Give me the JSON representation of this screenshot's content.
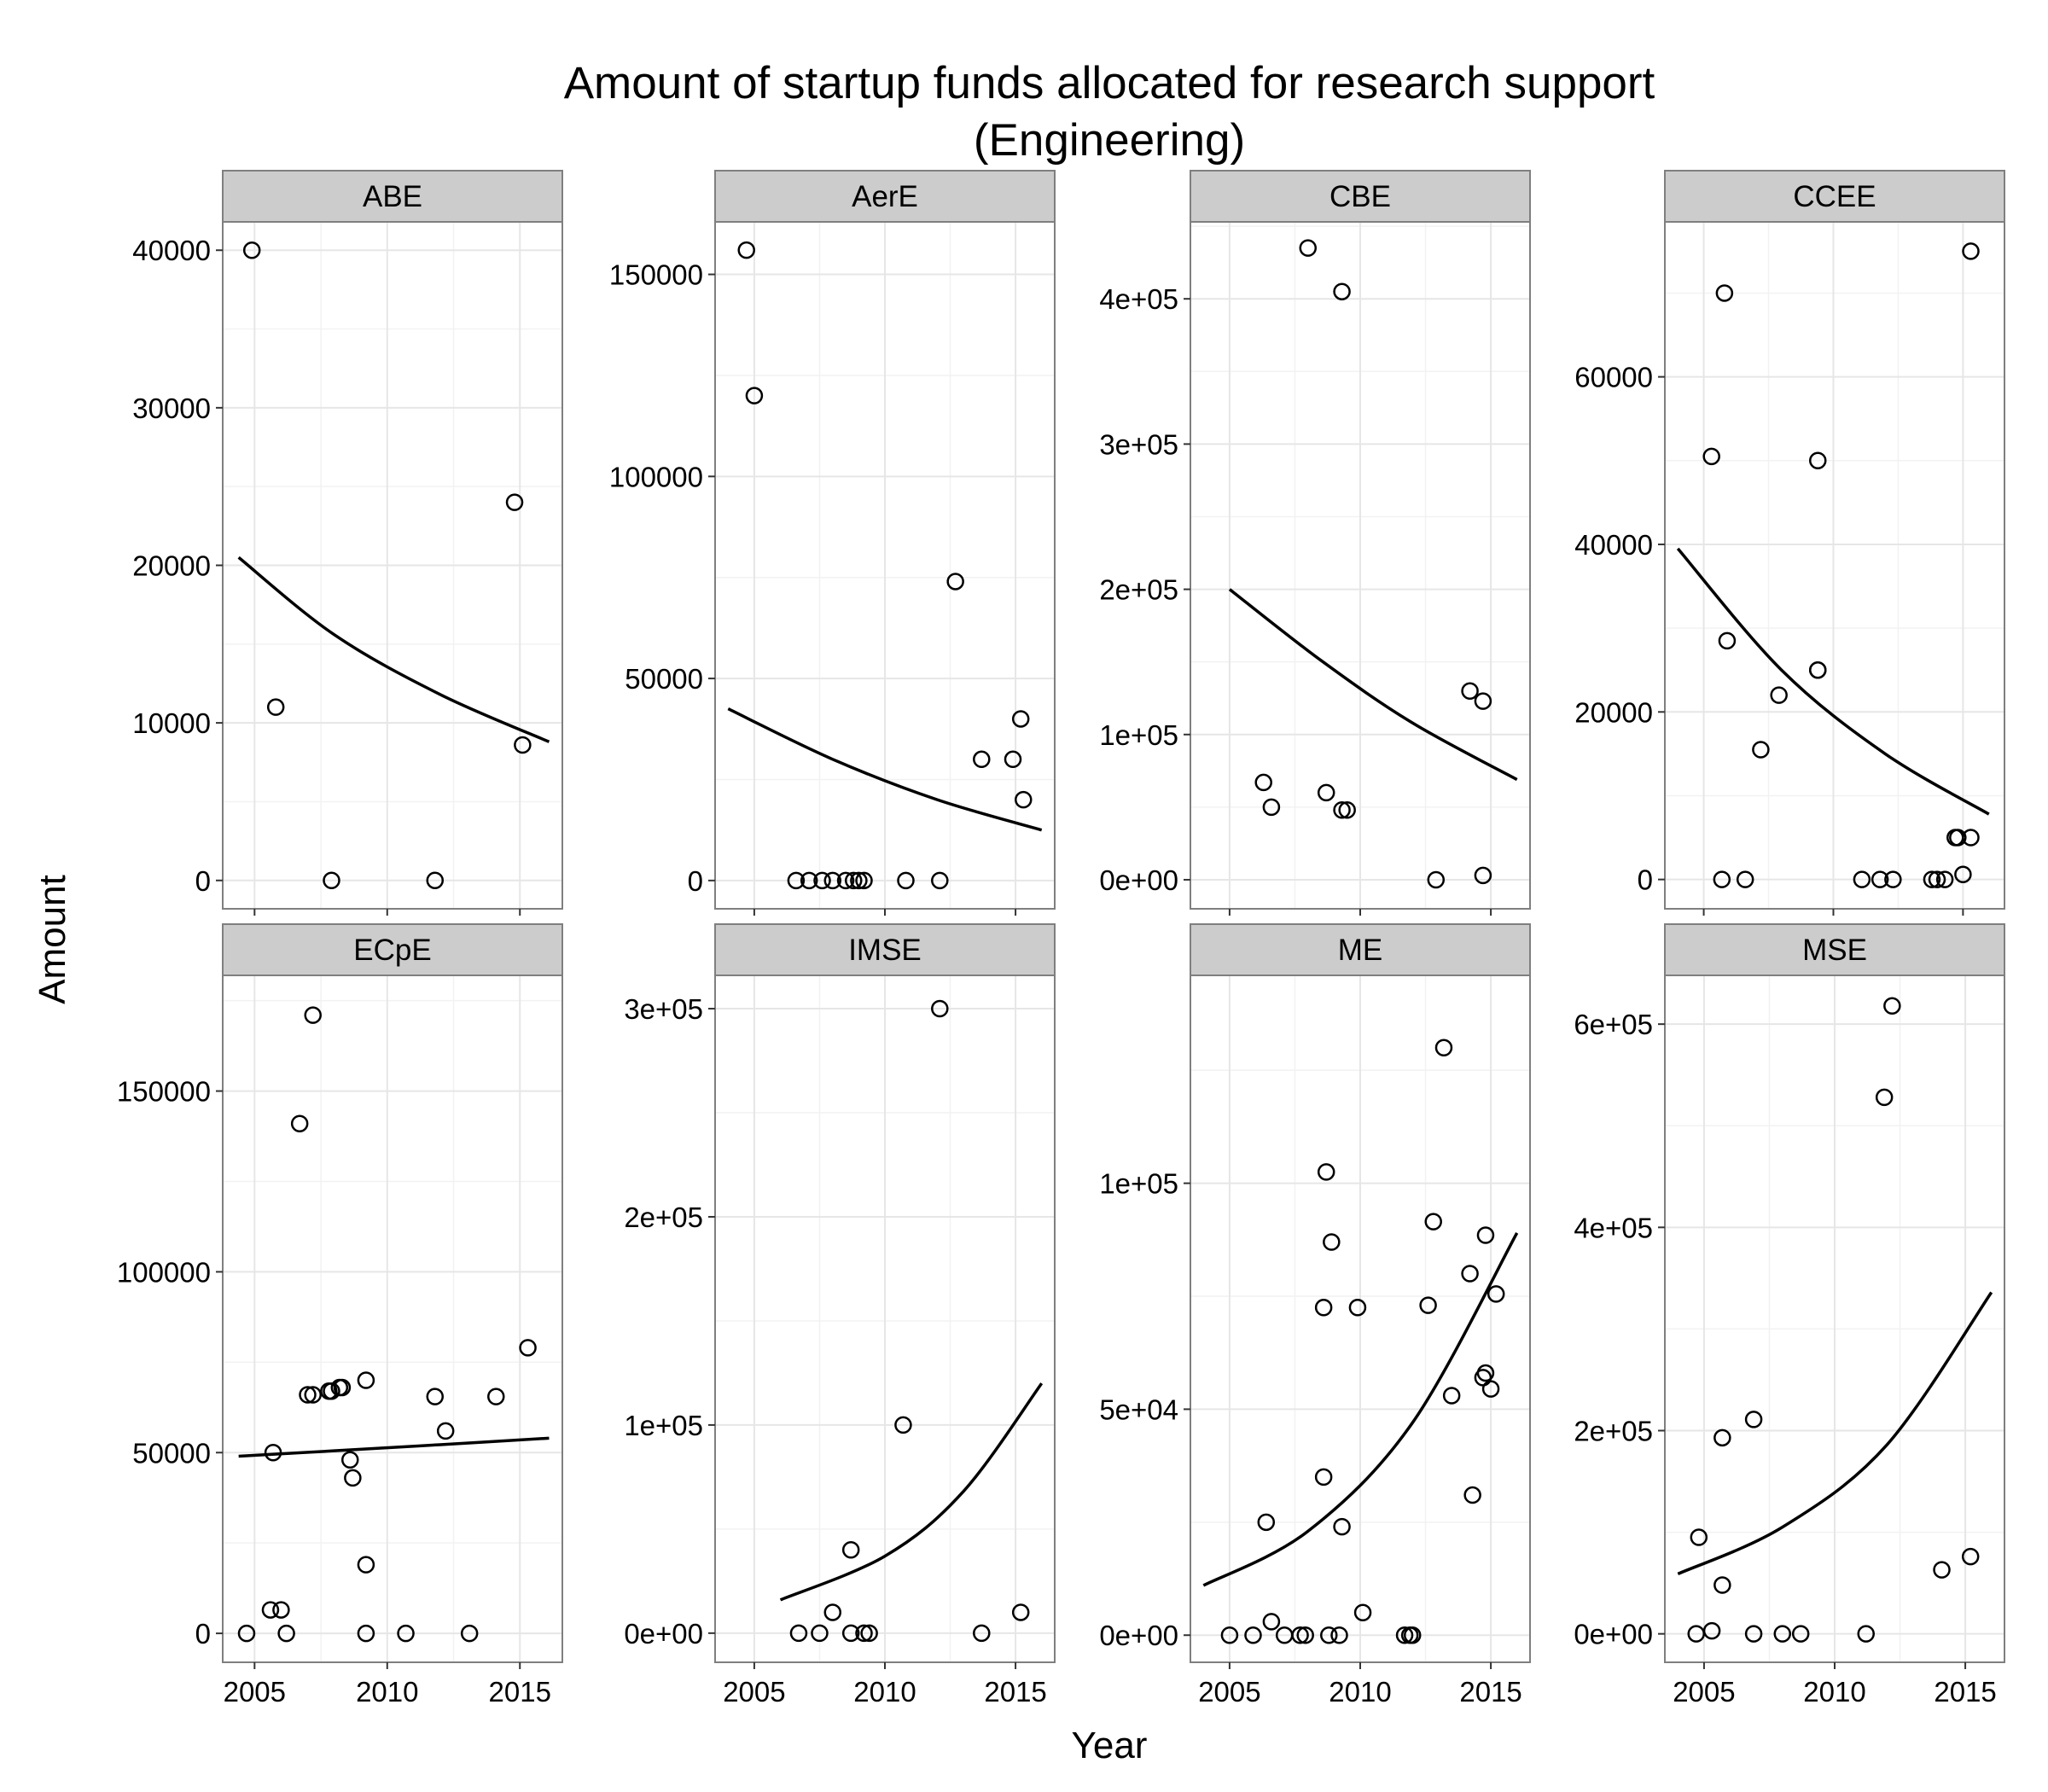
{
  "title": [
    "Amount of startup funds allocated for research support",
    "(Engineering)"
  ],
  "xlabel": "Year",
  "ylabel": "Amount",
  "colors": {
    "strip_fill": "#cccccc",
    "panel_border": "#7f7f7f",
    "grid_major": "#e6e6e6",
    "grid_minor": "#f2f2f2",
    "point_stroke": "#000000",
    "trend_line": "#000000"
  },
  "chart_data": [
    {
      "type": "scatter",
      "panel": "ABE",
      "xlim": [
        2003.8,
        2016.6
      ],
      "ylim": [
        -1800,
        41800
      ],
      "x_ticks": [
        2005,
        2010,
        2015
      ],
      "x_tick_labels": [
        "2005",
        "2010",
        "2015"
      ],
      "y_ticks": [
        0,
        10000,
        20000,
        30000,
        40000
      ],
      "y_tick_labels": [
        "0",
        "10000",
        "20000",
        "30000",
        "40000"
      ],
      "points": [
        [
          2004.9,
          40000
        ],
        [
          2005.8,
          11000
        ],
        [
          2007.9,
          0
        ],
        [
          2011.8,
          0
        ],
        [
          2014.8,
          24000
        ],
        [
          2015.1,
          8600
        ]
      ],
      "trend": [
        [
          2004.4,
          20500
        ],
        [
          2008.0,
          15600
        ],
        [
          2012.0,
          11800
        ],
        [
          2016.1,
          8800
        ]
      ]
    },
    {
      "type": "scatter",
      "panel": "AerE",
      "xlim": [
        2003.5,
        2016.5
      ],
      "ylim": [
        -7000,
        163000
      ],
      "x_ticks": [
        2005,
        2010,
        2015
      ],
      "x_tick_labels": [
        "2005",
        "2010",
        "2015"
      ],
      "y_ticks": [
        0,
        50000,
        100000,
        150000
      ],
      "y_tick_labels": [
        "0",
        "50000",
        "100000",
        "150000"
      ],
      "points": [
        [
          2004.7,
          156000
        ],
        [
          2005.0,
          120000
        ],
        [
          2006.6,
          0
        ],
        [
          2007.1,
          0
        ],
        [
          2007.6,
          0
        ],
        [
          2008.0,
          0
        ],
        [
          2008.5,
          0
        ],
        [
          2008.8,
          0
        ],
        [
          2009.0,
          0
        ],
        [
          2009.2,
          0
        ],
        [
          2010.8,
          0
        ],
        [
          2012.1,
          0
        ],
        [
          2012.7,
          74000
        ],
        [
          2013.7,
          30000
        ],
        [
          2014.9,
          30000
        ],
        [
          2015.2,
          40000
        ],
        [
          2015.3,
          20000
        ]
      ],
      "trend": [
        [
          2004.0,
          42500
        ],
        [
          2008.0,
          30000
        ],
        [
          2012.0,
          20000
        ],
        [
          2016.0,
          12500
        ]
      ]
    },
    {
      "type": "scatter",
      "panel": "CBE",
      "xlim": [
        2003.5,
        2016.5
      ],
      "ylim": [
        -20000,
        453000
      ],
      "x_ticks": [
        2005,
        2010,
        2015
      ],
      "x_tick_labels": [
        "2005",
        "2010",
        "2015"
      ],
      "y_ticks": [
        0,
        100000,
        200000,
        300000,
        400000
      ],
      "y_tick_labels": [
        "0e+00",
        "1e+05",
        "2e+05",
        "3e+05",
        "4e+05"
      ],
      "points": [
        [
          2006.3,
          67000
        ],
        [
          2006.6,
          50000
        ],
        [
          2008.0,
          435000
        ],
        [
          2008.7,
          60000
        ],
        [
          2009.3,
          405000
        ],
        [
          2009.3,
          48000
        ],
        [
          2009.5,
          48000
        ],
        [
          2012.9,
          0
        ],
        [
          2014.2,
          130000
        ],
        [
          2014.7,
          123000
        ],
        [
          2014.7,
          3000
        ]
      ],
      "trend": [
        [
          2005.0,
          200000
        ],
        [
          2008.5,
          151000
        ],
        [
          2012.0,
          108000
        ],
        [
          2016.0,
          69000
        ]
      ]
    },
    {
      "type": "scatter",
      "panel": "CCEE",
      "xlim": [
        2003.5,
        2016.6
      ],
      "ylim": [
        -3500,
        78500
      ],
      "x_ticks": [
        2005,
        2010,
        2015
      ],
      "x_tick_labels": [
        "2005",
        "2010",
        "2015"
      ],
      "y_ticks": [
        0,
        20000,
        40000,
        60000
      ],
      "y_tick_labels": [
        "0",
        "20000",
        "40000",
        "60000"
      ],
      "points": [
        [
          2005.3,
          50500
        ],
        [
          2005.7,
          0
        ],
        [
          2005.8,
          70000
        ],
        [
          2005.9,
          28500
        ],
        [
          2006.6,
          0
        ],
        [
          2007.2,
          15500
        ],
        [
          2007.9,
          22000
        ],
        [
          2009.4,
          50000
        ],
        [
          2009.4,
          25000
        ],
        [
          2009.4,
          25000
        ],
        [
          2011.1,
          0
        ],
        [
          2011.8,
          0
        ],
        [
          2012.3,
          0
        ],
        [
          2013.8,
          0
        ],
        [
          2014.0,
          0
        ],
        [
          2014.3,
          0
        ],
        [
          2014.7,
          5000
        ],
        [
          2014.8,
          5000
        ],
        [
          2015.0,
          600
        ],
        [
          2015.3,
          75000
        ],
        [
          2015.3,
          5000
        ]
      ],
      "trend": [
        [
          2004.0,
          39500
        ],
        [
          2008.0,
          25000
        ],
        [
          2012.0,
          15000
        ],
        [
          2016.0,
          7800
        ]
      ]
    },
    {
      "type": "scatter",
      "panel": "ECpE",
      "xlim": [
        2003.8,
        2016.6
      ],
      "ylim": [
        -8000,
        182000
      ],
      "x_ticks": [
        2005,
        2010,
        2015
      ],
      "x_tick_labels": [
        "2005",
        "2010",
        "2015"
      ],
      "y_ticks": [
        0,
        50000,
        100000,
        150000
      ],
      "y_tick_labels": [
        "0",
        "50000",
        "100000",
        "150000"
      ],
      "points": [
        [
          2004.7,
          0
        ],
        [
          2005.6,
          6500
        ],
        [
          2005.7,
          50000
        ],
        [
          2006.0,
          6500
        ],
        [
          2006.2,
          0
        ],
        [
          2006.7,
          141000
        ],
        [
          2007.0,
          66000
        ],
        [
          2007.2,
          171000
        ],
        [
          2007.2,
          66000
        ],
        [
          2007.8,
          67000
        ],
        [
          2007.9,
          67000
        ],
        [
          2008.2,
          68000
        ],
        [
          2008.3,
          68000
        ],
        [
          2008.6,
          48000
        ],
        [
          2008.7,
          43000
        ],
        [
          2009.2,
          70000
        ],
        [
          2009.2,
          19000
        ],
        [
          2009.2,
          0
        ],
        [
          2010.7,
          0
        ],
        [
          2011.8,
          65500
        ],
        [
          2012.2,
          56000
        ],
        [
          2013.1,
          0
        ],
        [
          2014.1,
          65500
        ],
        [
          2015.3,
          79000
        ]
      ],
      "trend": [
        [
          2004.4,
          49000
        ],
        [
          2008.0,
          50500
        ],
        [
          2012.0,
          52200
        ],
        [
          2016.1,
          54000
        ]
      ]
    },
    {
      "type": "scatter",
      "panel": "IMSE",
      "xlim": [
        2003.5,
        2016.5
      ],
      "ylim": [
        -14000,
        316000
      ],
      "x_ticks": [
        2005,
        2010,
        2015
      ],
      "x_tick_labels": [
        "2005",
        "2010",
        "2015"
      ],
      "y_ticks": [
        0,
        100000,
        200000,
        300000
      ],
      "y_tick_labels": [
        "0e+00",
        "1e+05",
        "2e+05",
        "3e+05"
      ],
      "points": [
        [
          2006.7,
          0
        ],
        [
          2007.5,
          0
        ],
        [
          2008.0,
          10000
        ],
        [
          2008.7,
          40000
        ],
        [
          2008.7,
          0
        ],
        [
          2009.2,
          0
        ],
        [
          2009.4,
          0
        ],
        [
          2010.7,
          100000
        ],
        [
          2012.1,
          300000
        ],
        [
          2013.7,
          0
        ],
        [
          2015.2,
          10000
        ]
      ],
      "trend": [
        [
          2006.0,
          16000
        ],
        [
          2010.0,
          37000
        ],
        [
          2013.0,
          68000
        ],
        [
          2016.0,
          120000
        ]
      ]
    },
    {
      "type": "scatter",
      "panel": "ME",
      "xlim": [
        2003.5,
        2016.5
      ],
      "ylim": [
        -6000,
        146000
      ],
      "x_ticks": [
        2005,
        2010,
        2015
      ],
      "x_tick_labels": [
        "2005",
        "2010",
        "2015"
      ],
      "y_ticks": [
        0,
        50000,
        100000
      ],
      "y_tick_labels": [
        "0e+00",
        "5e+04",
        "1e+05"
      ],
      "points": [
        [
          2005.0,
          0
        ],
        [
          2005.9,
          0
        ],
        [
          2006.4,
          25000
        ],
        [
          2006.6,
          3000
        ],
        [
          2007.1,
          0
        ],
        [
          2007.7,
          0
        ],
        [
          2007.9,
          0
        ],
        [
          2008.6,
          72500
        ],
        [
          2008.6,
          35000
        ],
        [
          2008.7,
          102500
        ],
        [
          2008.8,
          0
        ],
        [
          2008.9,
          87000
        ],
        [
          2009.2,
          0
        ],
        [
          2009.3,
          24000
        ],
        [
          2009.9,
          72500
        ],
        [
          2010.1,
          5000
        ],
        [
          2011.7,
          0
        ],
        [
          2011.9,
          0
        ],
        [
          2012.0,
          0
        ],
        [
          2012.6,
          73000
        ],
        [
          2012.8,
          91500
        ],
        [
          2013.2,
          130000
        ],
        [
          2013.5,
          53000
        ],
        [
          2014.2,
          80000
        ],
        [
          2014.3,
          31000
        ],
        [
          2014.7,
          57000
        ],
        [
          2014.8,
          88500
        ],
        [
          2014.8,
          58000
        ],
        [
          2015.0,
          54500
        ],
        [
          2015.2,
          75500
        ]
      ],
      "trend": [
        [
          2004.0,
          11000
        ],
        [
          2008.0,
          23000
        ],
        [
          2012.0,
          47000
        ],
        [
          2016.0,
          89000
        ]
      ]
    },
    {
      "type": "scatter",
      "panel": "MSE",
      "xlim": [
        2003.5,
        2016.5
      ],
      "ylim": [
        -28000,
        648000
      ],
      "x_ticks": [
        2005,
        2010,
        2015
      ],
      "x_tick_labels": [
        "2005",
        "2010",
        "2015"
      ],
      "y_ticks": [
        0,
        200000,
        400000,
        600000
      ],
      "y_tick_labels": [
        "0e+00",
        "2e+05",
        "4e+05",
        "6e+05"
      ],
      "points": [
        [
          2004.7,
          0
        ],
        [
          2004.8,
          95000
        ],
        [
          2005.3,
          3000
        ],
        [
          2005.7,
          193000
        ],
        [
          2005.7,
          48000
        ],
        [
          2006.9,
          211000
        ],
        [
          2006.9,
          0
        ],
        [
          2008.0,
          0
        ],
        [
          2008.7,
          0
        ],
        [
          2011.2,
          0
        ],
        [
          2011.9,
          528000
        ],
        [
          2012.2,
          618000
        ],
        [
          2014.1,
          63000
        ],
        [
          2015.2,
          76000
        ]
      ],
      "trend": [
        [
          2004.0,
          59000
        ],
        [
          2008.0,
          105000
        ],
        [
          2012.0,
          186000
        ],
        [
          2016.0,
          336000
        ]
      ]
    }
  ]
}
